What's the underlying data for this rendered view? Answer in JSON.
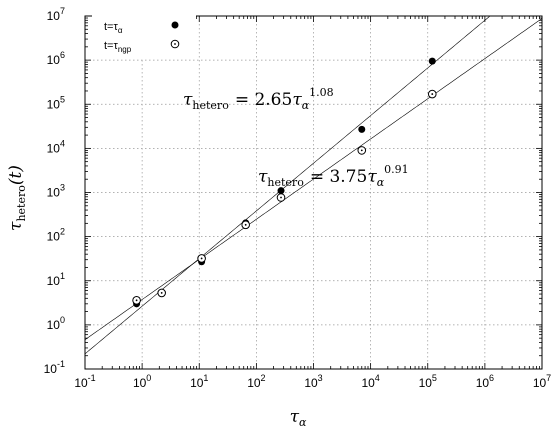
{
  "chart_data": {
    "type": "scatter",
    "x_scale": "log",
    "y_scale": "log",
    "xlim": [
      0.1,
      10000000
    ],
    "ylim": [
      0.1,
      10000000
    ],
    "grid": true,
    "legend_position": "top-left",
    "xlabel": {
      "base": "τ",
      "sub": "α"
    },
    "ylabel": {
      "base": "τ",
      "sub": "hetero",
      "suffix": "(t)"
    },
    "x_ticks": [
      {
        "value": 0.1,
        "base": "10",
        "exp": "-1"
      },
      {
        "value": 1,
        "base": "10",
        "exp": "0"
      },
      {
        "value": 10,
        "base": "10",
        "exp": "1"
      },
      {
        "value": 100,
        "base": "10",
        "exp": "2"
      },
      {
        "value": 1000,
        "base": "10",
        "exp": "3"
      },
      {
        "value": 10000,
        "base": "10",
        "exp": "4"
      },
      {
        "value": 100000,
        "base": "10",
        "exp": "5"
      },
      {
        "value": 1000000,
        "base": "10",
        "exp": "6"
      },
      {
        "value": 10000000,
        "base": "10",
        "exp": "7"
      }
    ],
    "y_ticks": [
      {
        "value": 0.1,
        "base": "10",
        "exp": "-1"
      },
      {
        "value": 1,
        "base": "10",
        "exp": "0"
      },
      {
        "value": 10,
        "base": "10",
        "exp": "1"
      },
      {
        "value": 100,
        "base": "10",
        "exp": "2"
      },
      {
        "value": 1000,
        "base": "10",
        "exp": "3"
      },
      {
        "value": 10000,
        "base": "10",
        "exp": "4"
      },
      {
        "value": 100000,
        "base": "10",
        "exp": "5"
      },
      {
        "value": 1000000,
        "base": "10",
        "exp": "6"
      },
      {
        "value": 10000000,
        "base": "10",
        "exp": "7"
      }
    ],
    "series": [
      {
        "legend": {
          "main": "t=τ",
          "sub": "α"
        },
        "marker": "filled-circle",
        "points": [
          {
            "x": 0.8,
            "y": 3.0
          },
          {
            "x": 2.2,
            "y": 5.3
          },
          {
            "x": 11,
            "y": 27
          },
          {
            "x": 65,
            "y": 205
          },
          {
            "x": 270,
            "y": 1100
          },
          {
            "x": 7000,
            "y": 27000
          },
          {
            "x": 120000,
            "y": 950000
          }
        ]
      },
      {
        "legend": {
          "main": "t=τ",
          "sub": "ngp"
        },
        "marker": "open-circle-dot",
        "points": [
          {
            "x": 0.8,
            "y": 3.6
          },
          {
            "x": 2.2,
            "y": 5.3
          },
          {
            "x": 11,
            "y": 32
          },
          {
            "x": 65,
            "y": 185
          },
          {
            "x": 270,
            "y": 770
          },
          {
            "x": 7000,
            "y": 9000
          },
          {
            "x": 120000,
            "y": 170000
          }
        ]
      }
    ],
    "fits": [
      {
        "coef": 2.65,
        "exponent": 1.08,
        "label": {
          "lhs_base": "τ",
          "lhs_sub": "hetero",
          "rel": "= 2.65",
          "rhs_base": "τ",
          "rhs_sub": "α",
          "rhs_exp": "1.08"
        }
      },
      {
        "coef": 3.75,
        "exponent": 0.91,
        "label": {
          "lhs_base": "τ",
          "lhs_sub": "hetero",
          "rel": "= 3.75",
          "rhs_base": "τ",
          "rhs_sub": "α",
          "rhs_exp": "0.91"
        }
      }
    ]
  }
}
